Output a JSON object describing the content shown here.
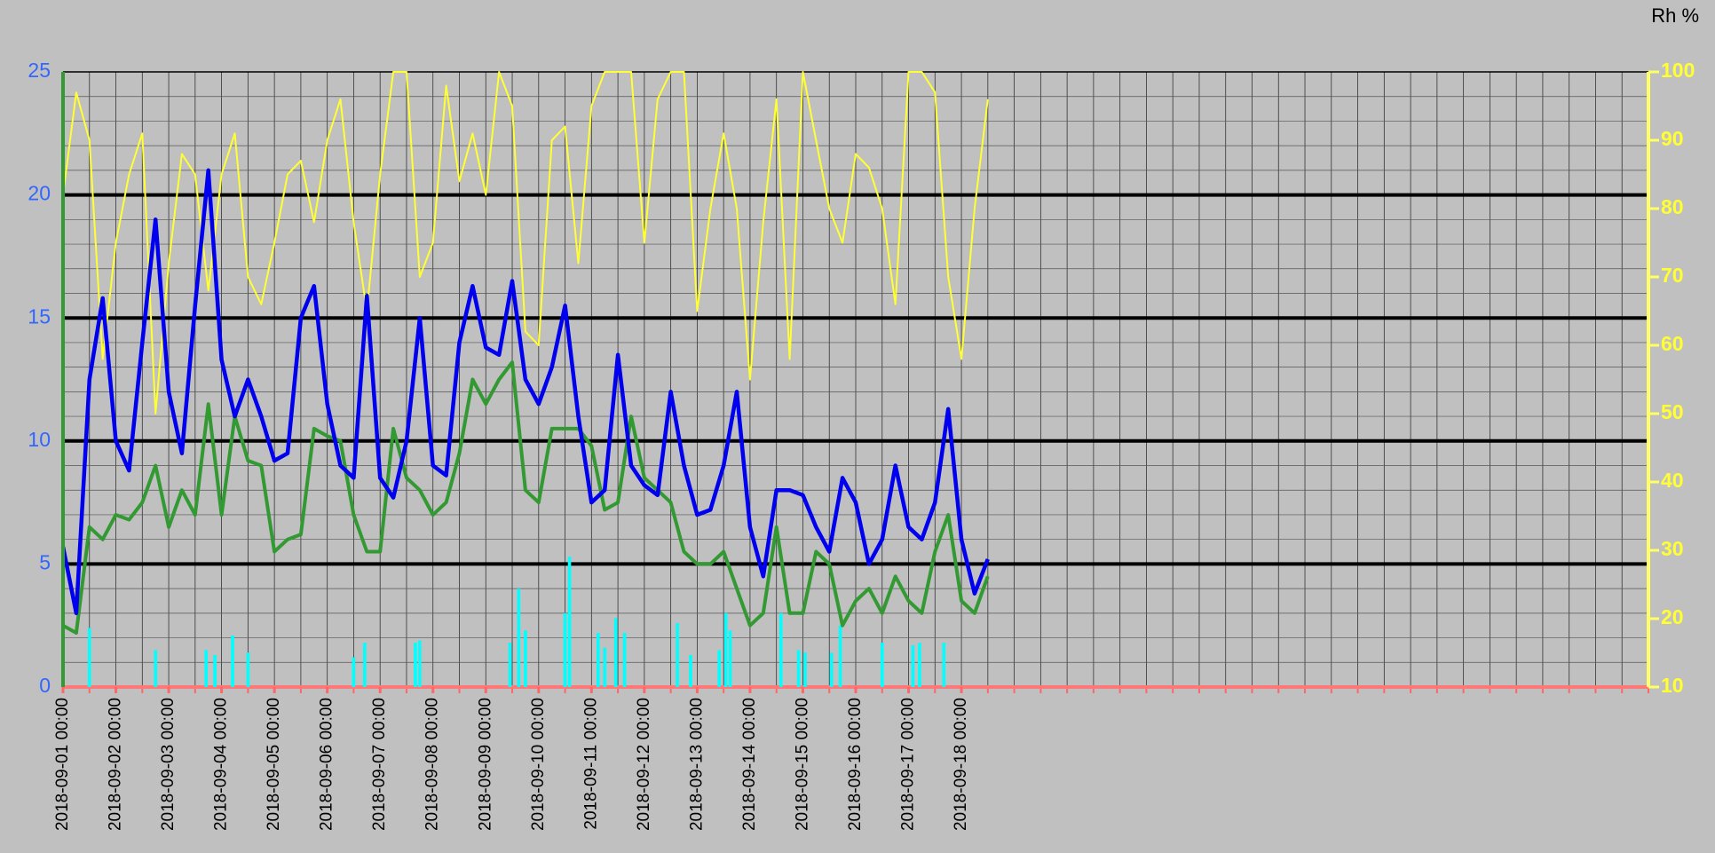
{
  "chart_data": {
    "type": "line",
    "y2label": "Rh %",
    "xlim": [
      "2018-09-01 00:00",
      "2018-10-01 00:00"
    ],
    "xticks": [
      "2018-09-01 00:00",
      "2018-09-02 00:00",
      "2018-09-03 00:00",
      "2018-09-04 00:00",
      "2018-09-05 00:00",
      "2018-09-06 00:00",
      "2018-09-07 00:00",
      "2018-09-08 00:00",
      "2018-09-09 00:00",
      "2018-09-10 00:00",
      "2018-09-11 00:00",
      "2018-09-12 00:00",
      "2018-09-13 00:00",
      "2018-09-14 00:00",
      "2018-09-15 00:00",
      "2018-09-16 00:00",
      "2018-09-17 00:00",
      "2018-09-18 00:00"
    ],
    "ylim": [
      0,
      25
    ],
    "yticks": [
      0,
      5,
      10,
      15,
      20,
      25
    ],
    "y2lim": [
      10,
      100
    ],
    "y2ticks": [
      10,
      20,
      30,
      40,
      50,
      60,
      70,
      80,
      90,
      100
    ],
    "grid": true,
    "x": [
      "2018-09-01 00:00",
      "2018-09-01 06:00",
      "2018-09-01 12:00",
      "2018-09-01 18:00",
      "2018-09-02 00:00",
      "2018-09-02 06:00",
      "2018-09-02 12:00",
      "2018-09-02 18:00",
      "2018-09-03 00:00",
      "2018-09-03 06:00",
      "2018-09-03 12:00",
      "2018-09-03 18:00",
      "2018-09-04 00:00",
      "2018-09-04 06:00",
      "2018-09-04 12:00",
      "2018-09-04 18:00",
      "2018-09-05 00:00",
      "2018-09-05 06:00",
      "2018-09-05 12:00",
      "2018-09-05 18:00",
      "2018-09-06 00:00",
      "2018-09-06 06:00",
      "2018-09-06 12:00",
      "2018-09-06 18:00",
      "2018-09-07 00:00",
      "2018-09-07 06:00",
      "2018-09-07 12:00",
      "2018-09-07 18:00",
      "2018-09-08 00:00",
      "2018-09-08 06:00",
      "2018-09-08 12:00",
      "2018-09-08 18:00",
      "2018-09-09 00:00",
      "2018-09-09 06:00",
      "2018-09-09 12:00",
      "2018-09-09 18:00",
      "2018-09-10 00:00",
      "2018-09-10 06:00",
      "2018-09-10 12:00",
      "2018-09-10 18:00",
      "2018-09-11 00:00",
      "2018-09-11 06:00",
      "2018-09-11 12:00",
      "2018-09-11 18:00",
      "2018-09-12 00:00",
      "2018-09-12 06:00",
      "2018-09-12 12:00",
      "2018-09-12 18:00",
      "2018-09-13 00:00",
      "2018-09-13 06:00",
      "2018-09-13 12:00",
      "2018-09-13 18:00",
      "2018-09-14 00:00",
      "2018-09-14 06:00",
      "2018-09-14 12:00",
      "2018-09-14 18:00",
      "2018-09-15 00:00",
      "2018-09-15 06:00",
      "2018-09-15 12:00",
      "2018-09-15 18:00",
      "2018-09-16 00:00",
      "2018-09-16 06:00",
      "2018-09-16 12:00",
      "2018-09-16 18:00",
      "2018-09-17 00:00",
      "2018-09-17 06:00",
      "2018-09-17 12:00",
      "2018-09-17 18:00",
      "2018-09-18 00:00",
      "2018-09-18 06:00",
      "2018-09-18 12:00"
    ],
    "series": [
      {
        "color": "#ffff33",
        "axis": "y2",
        "width": 2,
        "values": [
          82,
          97,
          90,
          58,
          75,
          85,
          91,
          50,
          72,
          88,
          85,
          68,
          85,
          91,
          70,
          66,
          75,
          85,
          87,
          78,
          90,
          96,
          78,
          65,
          85,
          100,
          100,
          70,
          75,
          98,
          84,
          91,
          82,
          100,
          95,
          62,
          60,
          90,
          92,
          72,
          95,
          100,
          100,
          100,
          75,
          96,
          100,
          100,
          65,
          80,
          91,
          80,
          55,
          78,
          96,
          58,
          100,
          90,
          80,
          75,
          88,
          86,
          80,
          66,
          100,
          100,
          97,
          70,
          58,
          80,
          96
        ]
      },
      {
        "color": "#339933",
        "width": 4,
        "values": [
          2.5,
          2.2,
          6.5,
          6.0,
          7.0,
          6.8,
          7.5,
          9.0,
          6.5,
          8.0,
          7.0,
          11.5,
          7.0,
          11.0,
          9.2,
          9.0,
          5.5,
          6.0,
          6.2,
          10.5,
          10.2,
          10.0,
          7.0,
          5.5,
          5.5,
          10.5,
          8.5,
          8.0,
          7.0,
          7.5,
          9.5,
          12.5,
          11.5,
          12.5,
          13.2,
          8.0,
          7.5,
          10.5,
          10.5,
          10.5,
          9.8,
          7.2,
          7.5,
          11.0,
          8.5,
          8.0,
          7.5,
          5.5,
          5.0,
          5.0,
          5.5,
          4.0,
          2.5,
          3.0,
          6.5,
          3.0,
          3.0,
          5.5,
          5.0,
          2.5,
          3.5,
          4.0,
          3.0,
          4.5,
          3.5,
          3.0,
          5.5,
          7.0,
          3.5,
          3.0,
          4.5
        ]
      },
      {
        "color": "#0000ee",
        "width": 4.5,
        "values": [
          5.7,
          3.0,
          12.5,
          15.8,
          10.0,
          8.8,
          14.0,
          19.0,
          12.0,
          9.5,
          15.5,
          21.0,
          13.3,
          11.0,
          12.5,
          11.0,
          9.2,
          9.5,
          15.0,
          16.3,
          11.5,
          9.0,
          8.5,
          15.9,
          8.5,
          7.7,
          10.0,
          15.0,
          9.0,
          8.6,
          14.0,
          16.3,
          13.8,
          13.5,
          16.5,
          12.5,
          11.5,
          13.0,
          15.5,
          11.0,
          7.5,
          8.0,
          13.5,
          9.0,
          8.2,
          7.8,
          12.0,
          9.0,
          7.0,
          7.2,
          9.0,
          12.0,
          6.5,
          4.5,
          8.0,
          8.0,
          7.8,
          6.5,
          5.5,
          8.5,
          7.5,
          5.0,
          6.0,
          9.0,
          6.5,
          6.0,
          7.5,
          11.3,
          6.0,
          3.8,
          5.2
        ]
      },
      {
        "color": "#00ffff",
        "type": "bar",
        "x": [
          "2018-09-01 12:00",
          "2018-09-02 18:00",
          "2018-09-03 17:00",
          "2018-09-03 21:00",
          "2018-09-04 05:00",
          "2018-09-04 12:00",
          "2018-09-06 12:00",
          "2018-09-06 17:00",
          "2018-09-07 16:00",
          "2018-09-07 18:00",
          "2018-09-09 11:00",
          "2018-09-09 15:00",
          "2018-09-09 18:00",
          "2018-09-10 12:00",
          "2018-09-10 14:00",
          "2018-09-11 03:00",
          "2018-09-11 06:00",
          "2018-09-11 11:00",
          "2018-09-11 15:00",
          "2018-09-12 15:00",
          "2018-09-12 21:00",
          "2018-09-13 10:00",
          "2018-09-13 13:00",
          "2018-09-13 15:00",
          "2018-09-14 14:00",
          "2018-09-14 22:00",
          "2018-09-15 01:00",
          "2018-09-15 13:00",
          "2018-09-15 17:00",
          "2018-09-16 12:00",
          "2018-09-17 02:00",
          "2018-09-17 05:00",
          "2018-09-17 16:00"
        ],
        "values": [
          2.4,
          1.5,
          1.5,
          1.3,
          2.1,
          1.4,
          1.2,
          1.8,
          1.8,
          1.9,
          1.8,
          4.0,
          2.3,
          3.0,
          5.3,
          2.2,
          1.6,
          2.8,
          2.2,
          2.6,
          1.3,
          1.5,
          3.0,
          2.3,
          3.0,
          1.5,
          1.4,
          1.4,
          2.5,
          1.8,
          1.7,
          1.8,
          1.8
        ]
      }
    ]
  }
}
